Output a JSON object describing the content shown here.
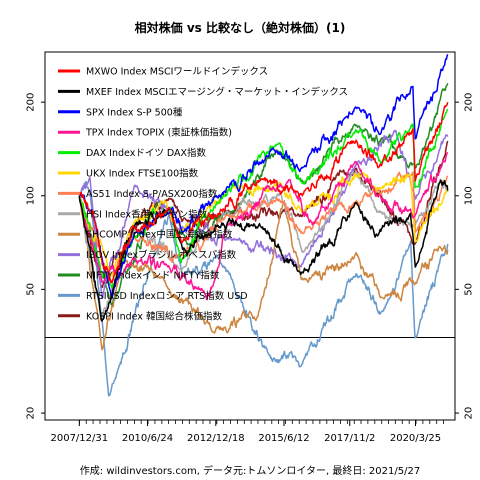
{
  "chart_data": {
    "type": "line",
    "title": "相対株価 vs 比較なし（絶対株価）(1)",
    "footer": "作成: wildinvestors.com, データ元:トムソンロイター, 最終日: 2021/5/27",
    "y_scale": "log",
    "ylim": [
      19,
      290
    ],
    "y_ticks": [
      20,
      50,
      100,
      200
    ],
    "x_range": [
      "2006-10-01",
      "2021-09-01"
    ],
    "x_tick_labels": [
      "2007/12/31",
      "2010/6/24",
      "2012/12/18",
      "2015/6/12",
      "2017/11/2",
      "2020/3/25"
    ],
    "reference_line": 35,
    "legend": {
      "placement": "top-left"
    },
    "series": [
      {
        "name": "MXWO Index MSCIワールドインデックス",
        "color": "#ff0000",
        "points": [
          [
            "2007-12-31",
            100
          ],
          [
            "2008-06-30",
            90
          ],
          [
            "2008-10-31",
            60
          ],
          [
            "2009-03-09",
            52
          ],
          [
            "2009-12-31",
            78
          ],
          [
            "2011-04-30",
            90
          ],
          [
            "2011-10-03",
            72
          ],
          [
            "2013-01-01",
            88
          ],
          [
            "2014-06-30",
            112
          ],
          [
            "2016-02-11",
            100
          ],
          [
            "2018-01-26",
            150
          ],
          [
            "2018-12-24",
            125
          ],
          [
            "2020-02-19",
            160
          ],
          [
            "2020-03-23",
            112
          ],
          [
            "2021-05-27",
            200
          ]
        ]
      },
      {
        "name": "MXEF Index MSCIエマージング・マーケット・インデックス",
        "color": "#000000",
        "points": [
          [
            "2007-12-31",
            100
          ],
          [
            "2008-10-27",
            40
          ],
          [
            "2009-12-31",
            80
          ],
          [
            "2011-04-30",
            90
          ],
          [
            "2011-10-03",
            66
          ],
          [
            "2013-01-01",
            80
          ],
          [
            "2014-09-01",
            80
          ],
          [
            "2016-01-21",
            55
          ],
          [
            "2018-01-26",
            95
          ],
          [
            "2018-10-31",
            75
          ],
          [
            "2020-01-17",
            85
          ],
          [
            "2020-03-23",
            60
          ],
          [
            "2021-02-17",
            110
          ],
          [
            "2021-05-27",
            104
          ]
        ]
      },
      {
        "name": "SPX Index S-P 500種",
        "color": "#0000ff",
        "points": [
          [
            "2007-12-31",
            100
          ],
          [
            "2008-06-30",
            88
          ],
          [
            "2009-03-09",
            46
          ],
          [
            "2009-12-31",
            75
          ],
          [
            "2011-04-30",
            92
          ],
          [
            "2011-10-03",
            76
          ],
          [
            "2013-01-01",
            99
          ],
          [
            "2014-12-31",
            140
          ],
          [
            "2016-02-11",
            125
          ],
          [
            "2018-01-26",
            195
          ],
          [
            "2018-12-24",
            160
          ],
          [
            "2020-02-19",
            230
          ],
          [
            "2020-03-23",
            155
          ],
          [
            "2021-05-27",
            285
          ]
        ]
      },
      {
        "name": "TPX Index TOPIX (東証株価指数)",
        "color": "#ff1493",
        "points": [
          [
            "2007-12-31",
            100
          ],
          [
            "2008-10-28",
            52
          ],
          [
            "2009-12-31",
            62
          ],
          [
            "2011-03-15",
            58
          ],
          [
            "2012-06-04",
            50
          ],
          [
            "2012-11-14",
            52
          ],
          [
            "2013-05-22",
            80
          ],
          [
            "2015-08-10",
            112
          ],
          [
            "2016-06-24",
            80
          ],
          [
            "2018-01-23",
            125
          ],
          [
            "2018-12-25",
            95
          ],
          [
            "2020-03-16",
            85
          ],
          [
            "2021-05-27",
            138
          ]
        ]
      },
      {
        "name": "DAX Indexドイツ DAX指数",
        "color": "#00ee00",
        "points": [
          [
            "2007-12-31",
            100
          ],
          [
            "2008-10-24",
            55
          ],
          [
            "2009-03-06",
            50
          ],
          [
            "2009-12-31",
            73
          ],
          [
            "2011-05-02",
            91
          ],
          [
            "2011-09-12",
            62
          ],
          [
            "2013-01-01",
            95
          ],
          [
            "2015-04-10",
            148
          ],
          [
            "2016-02-11",
            110
          ],
          [
            "2018-01-23",
            165
          ],
          [
            "2018-12-27",
            128
          ],
          [
            "2020-02-19",
            170
          ],
          [
            "2020-03-18",
            105
          ],
          [
            "2021-05-27",
            190
          ]
        ]
      },
      {
        "name": "UKX Index FTSE100指数",
        "color": "#ffd700",
        "points": [
          [
            "2007-12-31",
            100
          ],
          [
            "2009-03-03",
            55
          ],
          [
            "2009-12-31",
            83
          ],
          [
            "2011-02-08",
            94
          ],
          [
            "2011-09-22",
            77
          ],
          [
            "2013-05-22",
            104
          ],
          [
            "2015-04-27",
            108
          ],
          [
            "2016-02-11",
            90
          ],
          [
            "2018-05-22",
            120
          ],
          [
            "2018-12-24",
            104
          ],
          [
            "2020-01-17",
            118
          ],
          [
            "2020-03-23",
            72
          ],
          [
            "2021-05-27",
            108
          ]
        ]
      },
      {
        "name": "AS51 Index S-P/ASX200指数",
        "color": "#ff7f50",
        "points": [
          [
            "2007-12-31",
            100
          ],
          [
            "2009-03-06",
            52
          ],
          [
            "2009-12-31",
            76
          ],
          [
            "2011-10-03",
            64
          ],
          [
            "2013-05-14",
            84
          ],
          [
            "2015-04-27",
            96
          ],
          [
            "2016-02-08",
            78
          ],
          [
            "2018-08-29",
            102
          ],
          [
            "2020-02-20",
            118
          ],
          [
            "2020-03-23",
            76
          ],
          [
            "2021-05-27",
            115
          ]
        ]
      },
      {
        "name": "HSI Index香港ハンセン指数",
        "color": "#a9a9a9",
        "points": [
          [
            "2007-12-31",
            100
          ],
          [
            "2008-10-27",
            40
          ],
          [
            "2009-12-31",
            78
          ],
          [
            "2011-10-04",
            60
          ],
          [
            "2013-01-01",
            82
          ],
          [
            "2015-04-28",
            102
          ],
          [
            "2016-02-12",
            66
          ],
          [
            "2018-01-26",
            118
          ],
          [
            "2018-10-30",
            88
          ],
          [
            "2020-03-19",
            80
          ],
          [
            "2021-02-18",
            110
          ],
          [
            "2021-05-27",
            103
          ]
        ]
      },
      {
        "name": "SHCOMP Index中国上海総合指数",
        "color": "#cd853f",
        "points": [
          [
            "2007-12-31",
            100
          ],
          [
            "2008-10-28",
            32
          ],
          [
            "2009-08-04",
            62
          ],
          [
            "2010-12-31",
            54
          ],
          [
            "2012-12-03",
            37
          ],
          [
            "2014-06-30",
            40
          ],
          [
            "2015-06-12",
            97
          ],
          [
            "2016-01-28",
            52
          ],
          [
            "2018-01-26",
            65
          ],
          [
            "2019-01-02",
            46
          ],
          [
            "2020-03-23",
            53
          ],
          [
            "2021-02-18",
            68
          ],
          [
            "2021-05-27",
            67
          ]
        ]
      },
      {
        "name": "IBOV Indexブラジル ボベスパ指数",
        "color": "#9370db",
        "points": [
          [
            "2007-12-31",
            100
          ],
          [
            "2008-05-20",
            115
          ],
          [
            "2008-10-27",
            46
          ],
          [
            "2009-12-31",
            108
          ],
          [
            "2011-08-08",
            80
          ],
          [
            "2013-06-19",
            74
          ],
          [
            "2016-01-26",
            60
          ],
          [
            "2018-01-26",
            125
          ],
          [
            "2019-07-10",
            160
          ],
          [
            "2020-03-23",
            98
          ],
          [
            "2021-05-27",
            155
          ]
        ]
      },
      {
        "name": "NIFTY Indexインド NIFTY指数",
        "color": "#228b22",
        "points": [
          [
            "2007-12-31",
            100
          ],
          [
            "2009-03-09",
            44
          ],
          [
            "2010-11-05",
            96
          ],
          [
            "2011-12-20",
            70
          ],
          [
            "2013-08-28",
            90
          ],
          [
            "2015-03-03",
            140
          ],
          [
            "2016-02-29",
            110
          ],
          [
            "2018-01-29",
            170
          ],
          [
            "2020-03-23",
            122
          ],
          [
            "2021-05-27",
            230
          ]
        ]
      },
      {
        "name": "RTSIUSD Indexロシア RTS指数 USD",
        "color": "#6699cc",
        "points": [
          [
            "2007-12-31",
            100
          ],
          [
            "2008-05-19",
            104
          ],
          [
            "2009-01-23",
            22
          ],
          [
            "2010-12-31",
            75
          ],
          [
            "2011-04-11",
            88
          ],
          [
            "2011-10-04",
            55
          ],
          [
            "2012-12-31",
            64
          ],
          [
            "2014-12-16",
            30
          ],
          [
            "2016-01-20",
            28
          ],
          [
            "2018-01-26",
            56
          ],
          [
            "2018-12-24",
            42
          ],
          [
            "2020-01-20",
            71
          ],
          [
            "2020-03-18",
            35
          ],
          [
            "2021-05-27",
            70
          ]
        ]
      },
      {
        "name": "KOSPI Index 韓国総合株価指数",
        "color": "#8b1a1a",
        "points": [
          [
            "2007-12-31",
            100
          ],
          [
            "2008-10-24",
            50
          ],
          [
            "2009-12-31",
            80
          ],
          [
            "2011-04-30",
            100
          ],
          [
            "2011-09-26",
            83
          ],
          [
            "2013-06-25",
            88
          ],
          [
            "2016-02-12",
            86
          ],
          [
            "2018-01-29",
            124
          ],
          [
            "2020-03-19",
            70
          ],
          [
            "2021-05-27",
            150
          ]
        ]
      }
    ]
  }
}
